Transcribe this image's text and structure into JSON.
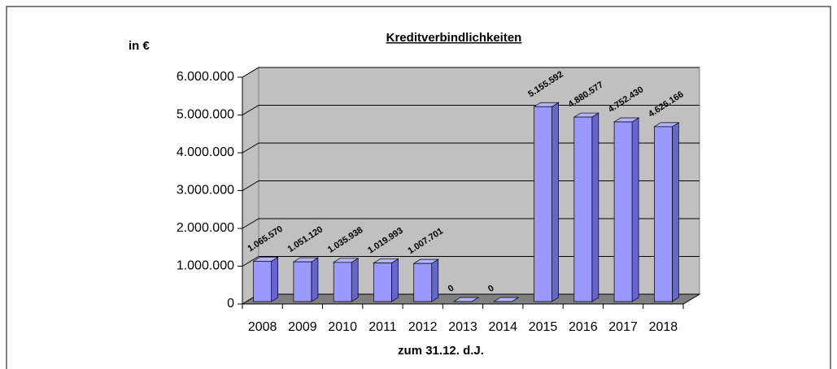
{
  "chart_data": {
    "type": "bar3d",
    "title": "Kreditverbindlichkeiten",
    "y_label": "in €",
    "x_label": "zum 31.12. d.J.",
    "categories": [
      "2008",
      "2009",
      "2010",
      "2011",
      "2012",
      "2013",
      "2014",
      "2015",
      "2016",
      "2017",
      "2018"
    ],
    "values": [
      1065570,
      1051120,
      1035938,
      1019993,
      1007701,
      0,
      0,
      5155592,
      4880577,
      4752430,
      4626166
    ],
    "value_labels": [
      "1.065.570",
      "1.051.120",
      "1.035.938",
      "1.019.993",
      "1.007.701",
      "0",
      "0",
      "5.155.592",
      "4.880.577",
      "4.752.430",
      "4.626.166"
    ],
    "color": "#9999ff",
    "ylim": [
      0,
      6000000
    ],
    "yticks": [
      0,
      {
        "value": 1000000,
        "label": "1.000.000"
      },
      {
        "value": 2000000,
        "label": "2.000.000"
      },
      {
        "value": 3000000,
        "label": "3.000.000"
      },
      {
        "value": 4000000,
        "label": "4.000.000"
      },
      {
        "value": 5000000,
        "label": "5.000.000"
      },
      {
        "value": 6000000,
        "label": "6.000.000"
      }
    ],
    "grid": true
  }
}
